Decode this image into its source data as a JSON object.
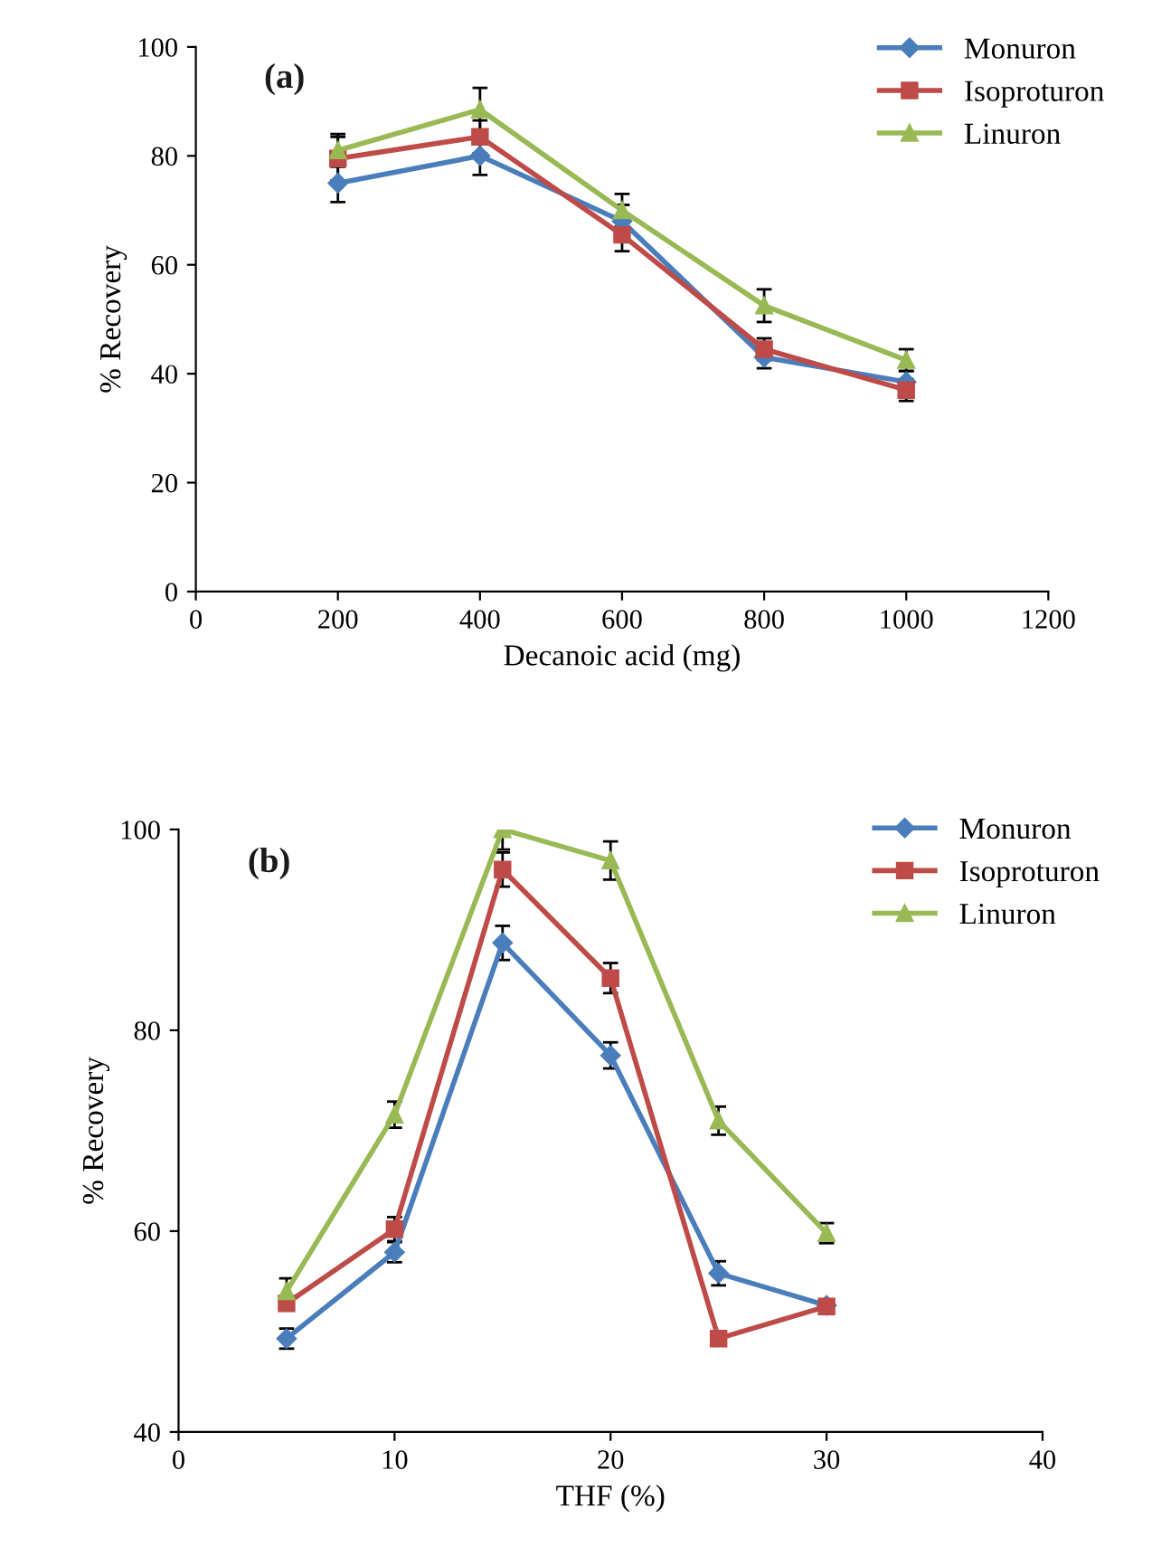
{
  "chart_data": [
    {
      "type": "line",
      "title": "(a)",
      "xlabel": "Decanoic acid (mg)",
      "ylabel": "% Recovery",
      "x": [
        200,
        400,
        600,
        800,
        1000
      ],
      "xlim": [
        0,
        1200
      ],
      "xticks": [
        0,
        200,
        400,
        600,
        800,
        1000,
        1200
      ],
      "ylim": [
        0,
        100
      ],
      "yticks": [
        0,
        20,
        40,
        60,
        80,
        100
      ],
      "grid": false,
      "legend": "top right",
      "series": [
        {
          "name": "Monuron",
          "color": "#4a7ebb",
          "marker": "diamond",
          "values": [
            75,
            80,
            68,
            43,
            38.5
          ],
          "errors": [
            3.5,
            3.5,
            3,
            2,
            2
          ]
        },
        {
          "name": "Isoproturon",
          "color": "#be4b48",
          "marker": "square",
          "values": [
            79.5,
            83.5,
            65.5,
            44.5,
            37
          ],
          "errors": [
            4,
            3,
            3,
            2,
            2
          ]
        },
        {
          "name": "Linuron",
          "color": "#98b954",
          "marker": "triangle",
          "values": [
            81,
            88.5,
            70,
            52.5,
            42.5
          ],
          "errors": [
            3,
            4,
            3,
            3,
            2
          ]
        }
      ]
    },
    {
      "type": "line",
      "title": "(b)",
      "xlabel": "THF (%)",
      "ylabel": "% Recovery",
      "x": [
        5,
        10,
        15,
        20,
        25,
        30
      ],
      "xlim": [
        0,
        40
      ],
      "xticks": [
        0,
        10,
        20,
        30,
        40
      ],
      "ylim": [
        40,
        100
      ],
      "yticks": [
        40,
        60,
        80,
        100
      ],
      "grid": false,
      "legend": "top right",
      "series": [
        {
          "name": "Monuron",
          "color": "#4a7ebb",
          "marker": "diamond",
          "values": [
            49.3,
            57.9,
            88.7,
            77.5,
            55.8,
            52.6
          ],
          "errors": [
            1,
            1,
            1.7,
            1.3,
            1.2,
            0.5
          ]
        },
        {
          "name": "Isoproturon",
          "color": "#be4b48",
          "marker": "square",
          "values": [
            52.8,
            60.2,
            96,
            85.2,
            49.3,
            52.5
          ],
          "errors": [
            null,
            1.2,
            1.7,
            1.5,
            null,
            0.6
          ]
        },
        {
          "name": "Linuron",
          "color": "#98b954",
          "marker": "triangle",
          "values": [
            54,
            71.6,
            100,
            96.9,
            71,
            59.8
          ],
          "errors": [
            1.3,
            1.3,
            2,
            1.9,
            1.4,
            1
          ]
        }
      ]
    }
  ]
}
